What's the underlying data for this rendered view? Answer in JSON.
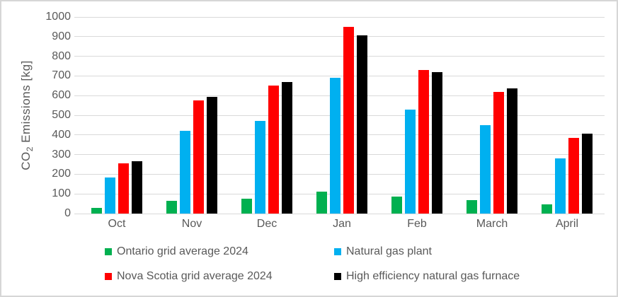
{
  "chart_data": {
    "type": "bar",
    "ylabel": {
      "prefix": "CO",
      "sub": "2",
      "suffix": " Emissions [kg]"
    },
    "ylim": [
      0,
      1000
    ],
    "yticks": [
      0,
      100,
      200,
      300,
      400,
      500,
      600,
      700,
      800,
      900,
      1000
    ],
    "grid": true,
    "legend_position": "bottom",
    "categories": [
      "Oct",
      "Nov",
      "Dec",
      "Jan",
      "Feb",
      "March",
      "April"
    ],
    "series": [
      {
        "name": "Ontario grid average 2024",
        "color": "#00b050",
        "values": [
          30,
          65,
          75,
          110,
          85,
          70,
          45
        ]
      },
      {
        "name": "Natural gas plant",
        "color": "#00b0f0",
        "values": [
          185,
          420,
          470,
          690,
          530,
          450,
          280
        ]
      },
      {
        "name": "Nova Scotia grid average 2024",
        "color": "#ff0000",
        "values": [
          255,
          575,
          650,
          950,
          730,
          620,
          385
        ]
      },
      {
        "name": "High efficiency natural gas furnace",
        "color": "#000000",
        "values": [
          265,
          595,
          670,
          905,
          720,
          635,
          405
        ]
      }
    ]
  },
  "colors": {
    "gridline": "#d9d9d9",
    "axis_text": "#595959",
    "frame_border": "#d6d6d6"
  }
}
